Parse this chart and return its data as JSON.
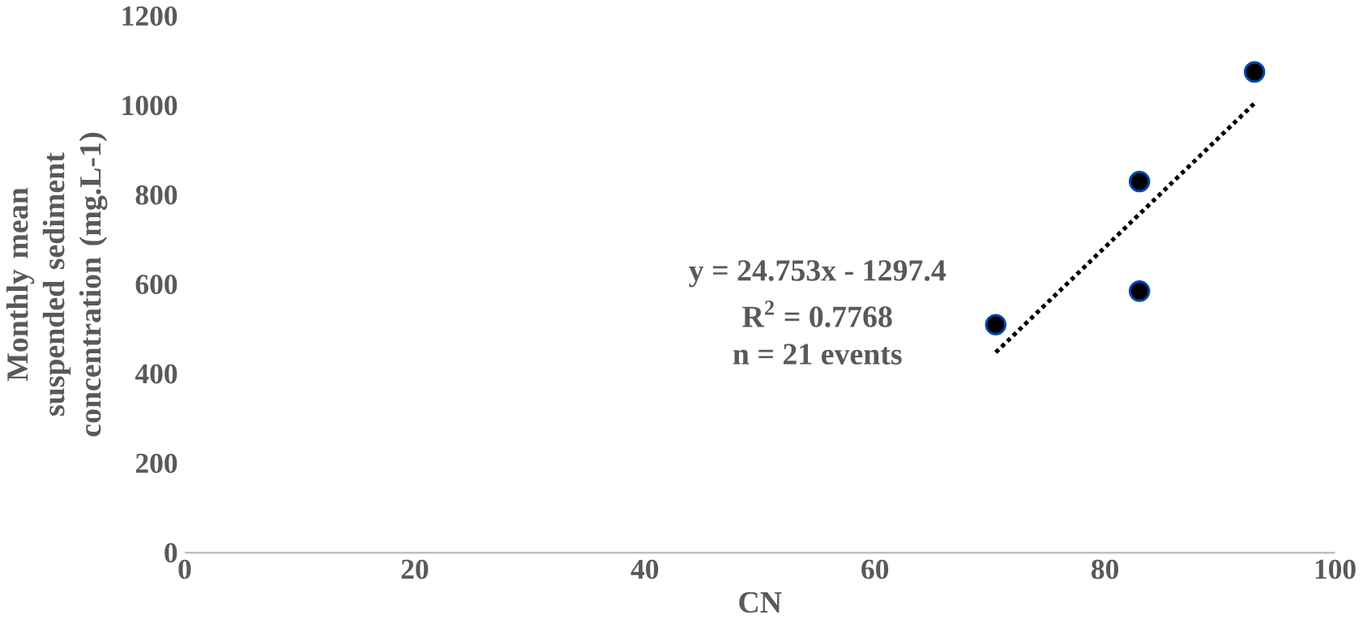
{
  "chart_data": {
    "type": "scatter",
    "xlabel": "CN",
    "ylabel": "Monthly mean suspended sediment concentration (mg.L-1)",
    "xlim": [
      0,
      100
    ],
    "xticks": [
      0,
      20,
      40,
      60,
      80,
      100
    ],
    "ylim": [
      0,
      1200
    ],
    "yticks": [
      0,
      200,
      400,
      600,
      800,
      1000,
      1200
    ],
    "grid": false,
    "series": [
      {
        "marker": "circle",
        "color": "#000000",
        "x": [
          70.5,
          83,
          83,
          93
        ],
        "values": [
          510,
          830,
          585,
          1075
        ]
      },
      {
        "type": "line",
        "color": "#000000",
        "line_style": "dotted",
        "marker": "none",
        "x": [
          70.5,
          93
        ],
        "values": [
          448,
          1005
        ]
      }
    ],
    "annotations": [
      "y = 24.753x - 1297.4",
      "R$^{2}$ = 0.7768",
      "n = 21 events"
    ]
  }
}
